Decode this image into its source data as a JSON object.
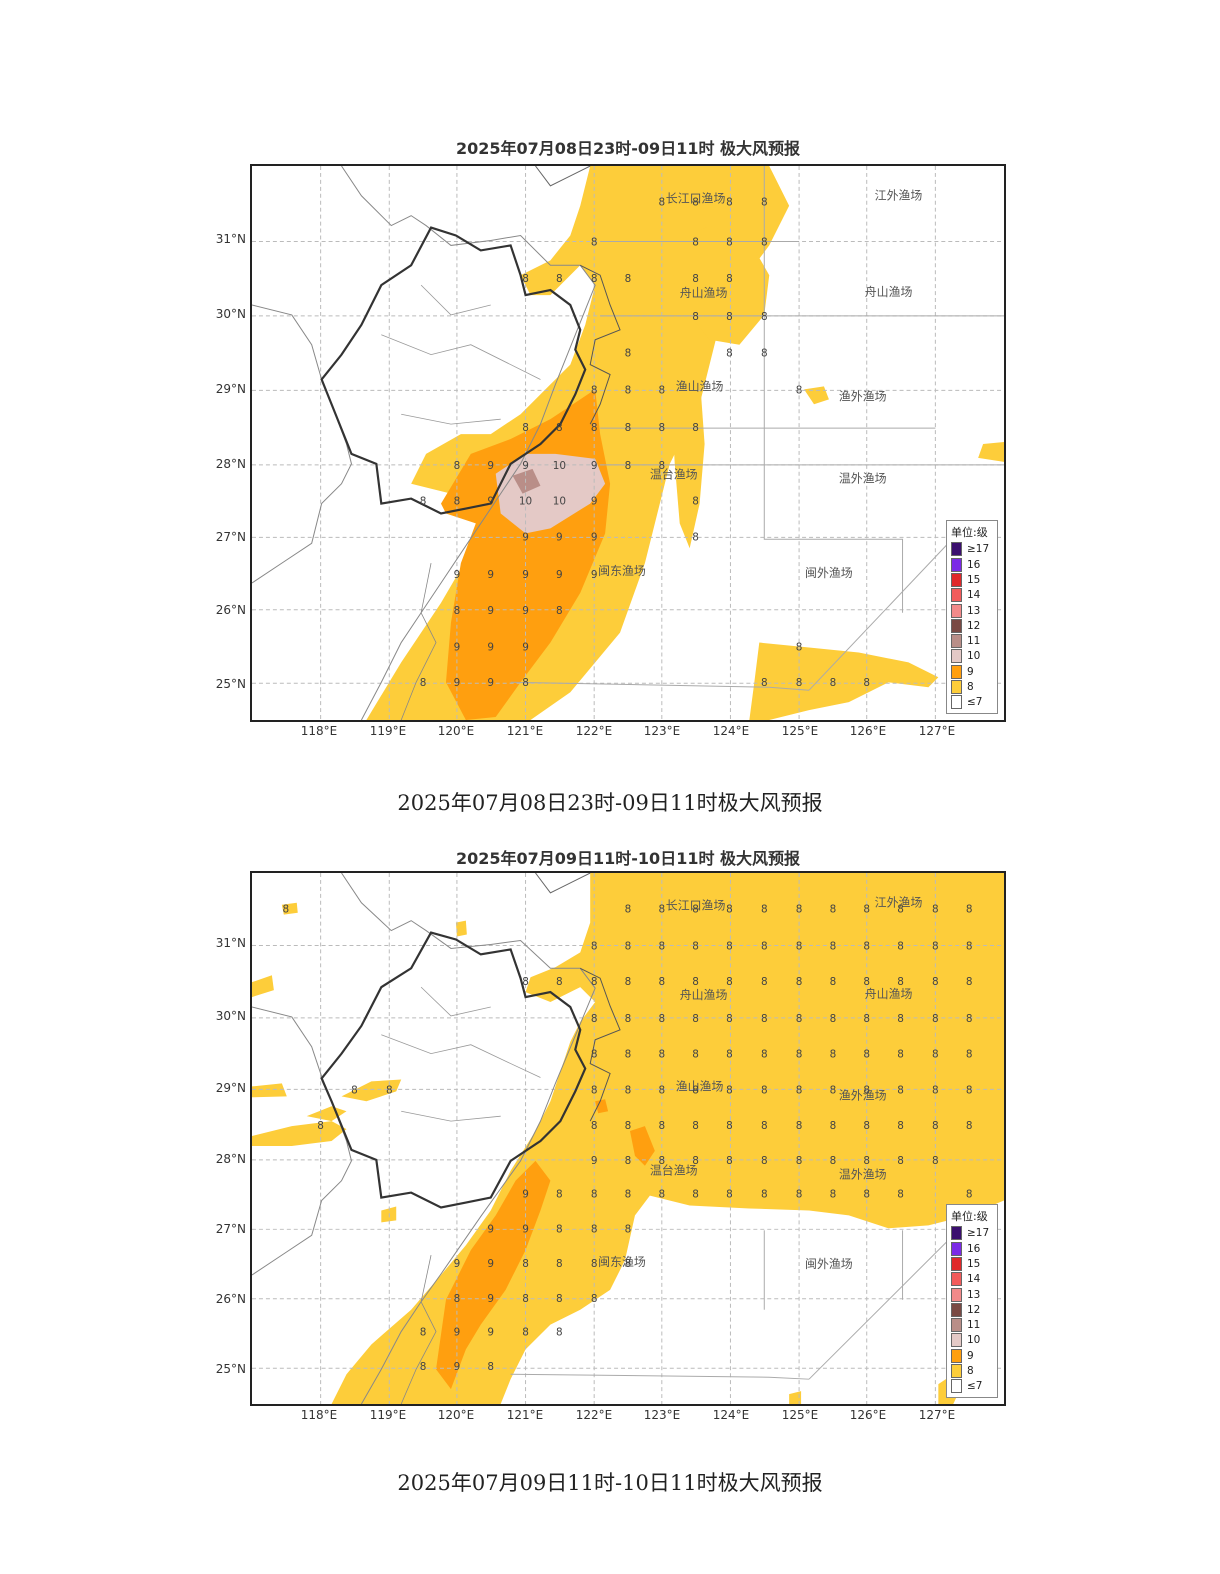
{
  "maps": [
    {
      "title": "2025年07月08日23时-09日11时 极大风预报",
      "caption": "2025年07月08日23时-09日11时极大风预报",
      "lat_labels": [
        "31°N",
        "30°N",
        "29°N",
        "28°N",
        "27°N",
        "26°N",
        "25°N"
      ],
      "lon_labels": [
        "118°E",
        "119°E",
        "120°E",
        "121°E",
        "122°E",
        "123°E",
        "124°E",
        "125°E",
        "126°E",
        "127°E"
      ],
      "fishing_grounds": [
        "长江口渔场",
        "江外渔场",
        "舟山渔场",
        "舟山渔场",
        "渔山渔场",
        "渔外渔场",
        "温台渔场",
        "温外渔场",
        "闽东渔场",
        "闽外渔场"
      ],
      "grade_marks": [
        "8",
        "9",
        "10"
      ]
    },
    {
      "title": "2025年07月09日11时-10日11时 极大风预报",
      "caption": "2025年07月09日11时-10日11时极大风预报",
      "lat_labels": [
        "31°N",
        "30°N",
        "29°N",
        "28°N",
        "27°N",
        "26°N",
        "25°N"
      ],
      "lon_labels": [
        "118°E",
        "119°E",
        "120°E",
        "121°E",
        "122°E",
        "123°E",
        "124°E",
        "125°E",
        "126°E",
        "127°E"
      ],
      "fishing_grounds": [
        "长江口渔场",
        "江外渔场",
        "舟山渔场",
        "舟山渔场",
        "渔山渔场",
        "渔外渔场",
        "温台渔场",
        "温外渔场",
        "闽东渔场",
        "闽外渔场"
      ],
      "grade_marks": [
        "8",
        "9"
      ]
    }
  ],
  "legend": {
    "title": "单位:级",
    "items": [
      {
        "label": "≥17",
        "color": "#3b0f6f"
      },
      {
        "label": "16",
        "color": "#7b2ae6"
      },
      {
        "label": "15",
        "color": "#e0282a"
      },
      {
        "label": "14",
        "color": "#f25b5b"
      },
      {
        "label": "13",
        "color": "#f28a8a"
      },
      {
        "label": "12",
        "color": "#7a4a44"
      },
      {
        "label": "11",
        "color": "#b98e88"
      },
      {
        "label": "10",
        "color": "#e4c9c6"
      },
      {
        "label": "9",
        "color": "#ff9f0f"
      },
      {
        "label": "8",
        "color": "#fdcd3a"
      },
      {
        "label": "≤7",
        "color": "#ffffff"
      }
    ]
  },
  "colors": {
    "grade8": "#fdcd3a",
    "grade9": "#ff9f0f",
    "grade10": "#e4c9c6",
    "grade11": "#b98e88"
  }
}
